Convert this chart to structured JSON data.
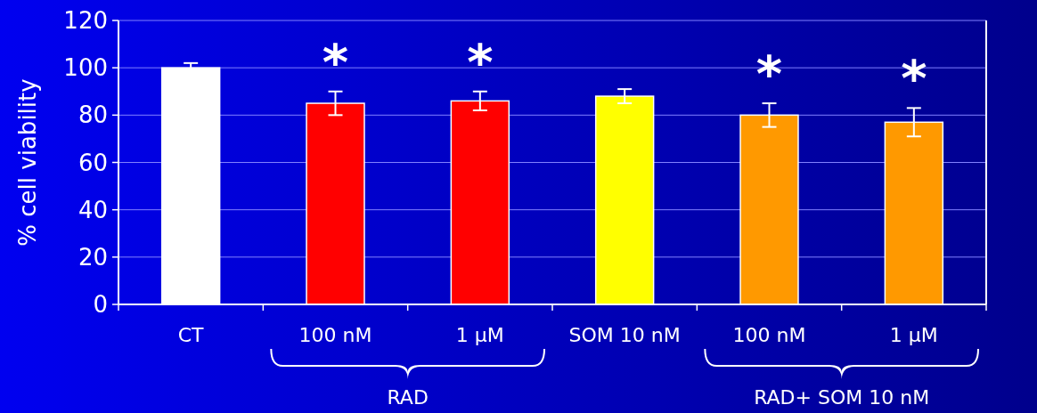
{
  "chart_data": {
    "type": "bar",
    "ylabel": "% cell viability",
    "categories": [
      "CT",
      "100 nM",
      "1 µM",
      "SOM 10 nM",
      "100 nM",
      "1 µM"
    ],
    "values": [
      100,
      85,
      86,
      88,
      80,
      77
    ],
    "colors": [
      "#ffffff",
      "#ff0000",
      "#ff0000",
      "#ffff00",
      "#ff9900",
      "#ff9900"
    ],
    "errors": [
      2,
      5,
      4,
      3,
      5,
      6
    ],
    "ylim": [
      0,
      120
    ],
    "yticks": [
      0,
      20,
      40,
      60,
      80,
      100,
      120
    ],
    "grid": "y",
    "annotations": [
      "*",
      "*",
      "*",
      "*",
      "RAD",
      "RAD+ SOM 10 nM"
    ]
  }
}
